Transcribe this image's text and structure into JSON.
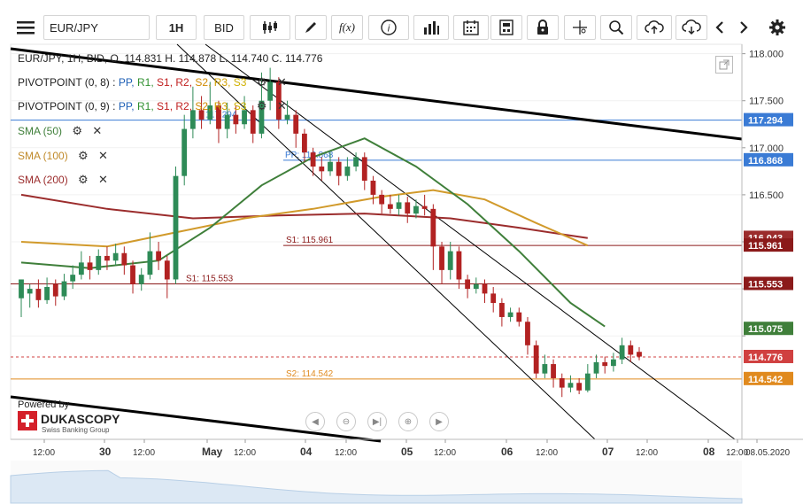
{
  "toolbar": {
    "symbol": "EUR/JPY",
    "timeframe": "1H",
    "price_side": "BID",
    "icons": [
      "menu-icon",
      "candlestick-type-icon",
      "draw-pencil-icon",
      "function-icon",
      "info-icon",
      "volume-bars-icon",
      "calendar-icon",
      "calculator-icon",
      "lock-icon",
      "crosshair-icon",
      "zoom-icon",
      "upload-cloud-icon",
      "download-cloud-icon",
      "chevron-left-icon",
      "chevron-right-icon",
      "gear-icon"
    ],
    "fx_label": "f(x)"
  },
  "legend": {
    "ohlc": "EUR/JPY, 1H, BID,   O. 114.831 H. 114.878 L. 114.740 C. 114.776",
    "pivot1_name": "PIVOTPOINT (0, 8)",
    "pivot2_name": "PIVOTPOINT (0, 9)",
    "pivot_levels": [
      "PP,",
      "R1,",
      "S1,",
      "R2,",
      "S2,",
      "R3,",
      "S3"
    ],
    "pivot_sep": ":",
    "sma50": "SMA (50)",
    "sma100": "SMA (100)",
    "sma200": "SMA (200)"
  },
  "branding": {
    "powered": "Powered by",
    "name": "DUKASCOPY",
    "tagline": "Swiss Banking Group"
  },
  "colors": {
    "up": "#2e8b57",
    "down": "#b22222",
    "sma50": "#3f7f3a",
    "sma100": "#d19a2b",
    "sma200": "#9b2c2c",
    "pp": "#3a7bd5",
    "s1": "#8b1a1a",
    "s2": "#e08a1e",
    "current": "#d04040",
    "trend": "#000000"
  },
  "chart_data": {
    "type": "candlestick",
    "symbol": "EUR/JPY",
    "interval": "1H",
    "ylim": [
      113.9,
      118.1
    ],
    "y_ticks": [
      118.0,
      117.5,
      117.0,
      116.5,
      116.0,
      115.5,
      115.0
    ],
    "y_tick_labels": [
      "118.000",
      "117.500",
      "117.000",
      "116.500",
      "",
      "",
      ""
    ],
    "x_tick_labels": [
      "12:00",
      "30",
      "12:00",
      "May",
      "12:00",
      "04",
      "12:00",
      "05",
      "12:00",
      "06",
      "12:00",
      "07",
      "12:00",
      "08",
      "12:00",
      "08.05.2020"
    ],
    "price_badges": [
      {
        "value": 117.294,
        "label": "117.294",
        "color": "#3a7bd5"
      },
      {
        "value": 116.868,
        "label": "116.868",
        "color": "#3a7bd5"
      },
      {
        "value": 116.043,
        "label": "116.043",
        "color": "#9b2c2c"
      },
      {
        "value": 115.961,
        "label": "115.961",
        "color": "#8b1a1a"
      },
      {
        "value": 115.553,
        "label": "115.553",
        "color": "#8b1a1a"
      },
      {
        "value": 115.075,
        "label": "115.075",
        "color": "#3f7f3a"
      },
      {
        "value": 114.776,
        "label": "114.776",
        "color": "#d04040"
      },
      {
        "value": 114.542,
        "label": "114.542",
        "color": "#e08a1e"
      }
    ],
    "level_labels": [
      {
        "text": "117.294",
        "value": 117.294
      },
      {
        "text": "PP: 116.868",
        "value": 116.868
      },
      {
        "text": "S1: 115.961",
        "value": 115.961
      },
      {
        "text": "S1: 115.553",
        "value": 115.553
      },
      {
        "text": "S2: 114.542",
        "value": 114.542
      }
    ],
    "last": {
      "open": 114.831,
      "high": 114.878,
      "low": 114.74,
      "close": 114.776
    },
    "candles": [
      [
        115.4,
        115.6,
        115.5,
        115.2
      ],
      [
        115.45,
        115.5,
        115.55,
        115.3
      ],
      [
        115.5,
        115.38,
        115.6,
        115.3
      ],
      [
        115.38,
        115.52,
        115.62,
        115.34
      ],
      [
        115.55,
        115.42,
        115.6,
        115.32
      ],
      [
        115.42,
        115.58,
        115.66,
        115.38
      ],
      [
        115.58,
        115.65,
        115.75,
        115.5
      ],
      [
        115.65,
        115.78,
        115.9,
        115.6
      ],
      [
        115.78,
        115.7,
        115.85,
        115.6
      ],
      [
        115.7,
        115.85,
        115.92,
        115.65
      ],
      [
        115.85,
        115.8,
        115.95,
        115.7
      ],
      [
        115.8,
        115.88,
        115.98,
        115.75
      ],
      [
        115.88,
        115.75,
        115.95,
        115.65
      ],
      [
        115.75,
        115.55,
        115.8,
        115.45
      ],
      [
        115.55,
        115.65,
        115.72,
        115.48
      ],
      [
        115.65,
        115.9,
        116.1,
        115.6
      ],
      [
        115.9,
        115.8,
        116.0,
        115.7
      ],
      [
        115.8,
        115.6,
        115.85,
        115.4
      ],
      [
        115.6,
        116.7,
        116.8,
        115.55
      ],
      [
        116.7,
        117.2,
        117.35,
        116.6
      ],
      [
        117.2,
        117.4,
        117.65,
        117.1
      ],
      [
        117.4,
        117.3,
        117.55,
        117.2
      ],
      [
        117.3,
        117.45,
        117.7,
        117.25
      ],
      [
        117.45,
        117.2,
        117.5,
        117.05
      ],
      [
        117.2,
        117.35,
        117.48,
        117.1
      ],
      [
        117.35,
        117.25,
        117.45,
        117.15
      ],
      [
        117.25,
        117.4,
        117.55,
        117.2
      ],
      [
        117.4,
        117.15,
        117.45,
        117.05
      ],
      [
        117.15,
        117.5,
        117.8,
        117.1
      ],
      [
        117.5,
        117.7,
        117.85,
        117.4
      ],
      [
        117.7,
        117.3,
        117.75,
        117.2
      ],
      [
        117.3,
        117.35,
        117.5,
        117.25
      ],
      [
        117.35,
        117.15,
        117.4,
        117.0
      ],
      [
        117.15,
        116.95,
        117.2,
        116.85
      ],
      [
        116.95,
        116.8,
        117.0,
        116.7
      ],
      [
        116.8,
        116.75,
        116.9,
        116.65
      ],
      [
        116.75,
        116.85,
        116.95,
        116.7
      ],
      [
        116.85,
        116.7,
        116.9,
        116.6
      ],
      [
        116.7,
        116.8,
        116.9,
        116.65
      ],
      [
        116.8,
        116.9,
        116.95,
        116.75
      ],
      [
        116.9,
        116.65,
        116.95,
        116.55
      ],
      [
        116.65,
        116.5,
        116.7,
        116.4
      ],
      [
        116.5,
        116.4,
        116.55,
        116.3
      ],
      [
        116.4,
        116.35,
        116.5,
        116.3
      ],
      [
        116.35,
        116.42,
        116.5,
        116.28
      ],
      [
        116.42,
        116.3,
        116.48,
        116.2
      ],
      [
        116.3,
        116.38,
        116.45,
        116.25
      ],
      [
        116.38,
        116.35,
        116.5,
        116.28
      ],
      [
        116.35,
        115.95,
        116.4,
        115.7
      ],
      [
        115.95,
        115.7,
        116.0,
        115.55
      ],
      [
        115.7,
        115.9,
        116.0,
        115.6
      ],
      [
        115.9,
        115.6,
        115.95,
        115.5
      ],
      [
        115.6,
        115.5,
        115.65,
        115.4
      ],
      [
        115.5,
        115.55,
        115.62,
        115.45
      ],
      [
        115.55,
        115.45,
        115.6,
        115.35
      ],
      [
        115.45,
        115.35,
        115.52,
        115.25
      ],
      [
        115.35,
        115.2,
        115.4,
        115.1
      ],
      [
        115.2,
        115.25,
        115.3,
        115.15
      ],
      [
        115.25,
        115.15,
        115.3,
        115.1
      ],
      [
        115.15,
        114.9,
        115.2,
        114.8
      ],
      [
        114.9,
        114.6,
        114.95,
        114.55
      ],
      [
        114.6,
        114.7,
        114.8,
        114.55
      ],
      [
        114.7,
        114.55,
        114.75,
        114.45
      ],
      [
        114.55,
        114.45,
        114.6,
        114.35
      ],
      [
        114.45,
        114.5,
        114.58,
        114.4
      ],
      [
        114.5,
        114.42,
        114.55,
        114.38
      ],
      [
        114.42,
        114.6,
        114.7,
        114.4
      ],
      [
        114.6,
        114.72,
        114.8,
        114.55
      ],
      [
        114.72,
        114.68,
        114.78,
        114.6
      ],
      [
        114.68,
        114.75,
        114.82,
        114.62
      ],
      [
        114.75,
        114.9,
        114.98,
        114.7
      ],
      [
        114.9,
        114.8,
        114.95,
        114.72
      ],
      [
        114.83,
        114.78,
        114.88,
        114.74
      ]
    ],
    "sma50": [
      [
        0,
        115.78
      ],
      [
        8,
        115.72
      ],
      [
        16,
        115.8
      ],
      [
        22,
        116.15
      ],
      [
        28,
        116.6
      ],
      [
        34,
        116.9
      ],
      [
        40,
        117.1
      ],
      [
        46,
        116.8
      ],
      [
        52,
        116.4
      ],
      [
        58,
        115.9
      ],
      [
        64,
        115.35
      ],
      [
        68,
        115.1
      ]
    ],
    "sma100": [
      [
        0,
        116.0
      ],
      [
        10,
        115.95
      ],
      [
        18,
        116.1
      ],
      [
        26,
        116.25
      ],
      [
        34,
        116.35
      ],
      [
        42,
        116.48
      ],
      [
        48,
        116.55
      ],
      [
        54,
        116.45
      ],
      [
        60,
        116.2
      ],
      [
        66,
        115.96
      ]
    ],
    "sma200": [
      [
        0,
        116.5
      ],
      [
        10,
        116.35
      ],
      [
        20,
        116.25
      ],
      [
        30,
        116.28
      ],
      [
        40,
        116.3
      ],
      [
        50,
        116.25
      ],
      [
        58,
        116.15
      ],
      [
        66,
        116.04
      ]
    ]
  }
}
